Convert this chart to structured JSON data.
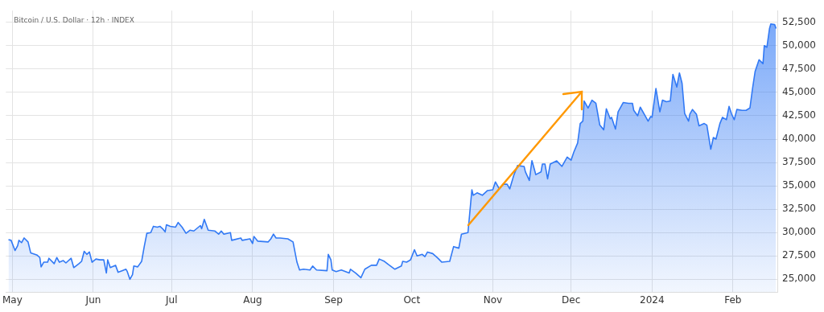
{
  "chart_data": {
    "type": "area",
    "title": "Bitcoin / U.S. Dollar · 12h · INDEX",
    "xlim": [
      "2023-04-28T12:00",
      "2024-02-18"
    ],
    "xticks": [
      {
        "value": "2023-05-01",
        "label": "May"
      },
      {
        "value": "2023-06-01",
        "label": "Jun"
      },
      {
        "value": "2023-07-01",
        "label": "Jul"
      },
      {
        "value": "2023-08-01",
        "label": "Aug"
      },
      {
        "value": "2023-09-01",
        "label": "Sep"
      },
      {
        "value": "2023-10-01",
        "label": "Oct"
      },
      {
        "value": "2023-11-01",
        "label": "Nov"
      },
      {
        "value": "2023-12-01",
        "label": "Dec"
      },
      {
        "value": "2024-01-01",
        "label": "2024"
      },
      {
        "value": "2024-02-01",
        "label": "Feb"
      }
    ],
    "ylim": [
      23600,
      53750
    ],
    "yticks": [
      {
        "value": 25000,
        "label": "25,000"
      },
      {
        "value": 27500,
        "label": "27,500"
      },
      {
        "value": 30000,
        "label": "30,000"
      },
      {
        "value": 32500,
        "label": "32,500"
      },
      {
        "value": 35000,
        "label": "35,000"
      },
      {
        "value": 37500,
        "label": "37,500"
      },
      {
        "value": 40000,
        "label": "40,000"
      },
      {
        "value": 42500,
        "label": "42,500"
      },
      {
        "value": 45000,
        "label": "45,000"
      },
      {
        "value": 47500,
        "label": "47,500"
      },
      {
        "value": 50000,
        "label": "50,000"
      },
      {
        "value": 52500,
        "label": "52,500"
      }
    ],
    "grid": true,
    "legend": false,
    "series": [
      {
        "color": "#3179f5",
        "x": [
          "2023-04-29T12:00",
          "2023-04-30T12:00",
          "2023-05-02",
          "2023-05-03",
          "2023-05-03T12:00",
          "2023-05-04T12:00",
          "2023-05-05T12:00",
          "2023-05-07",
          "2023-05-08",
          "2023-05-10T12:00",
          "2023-05-11T12:00",
          "2023-05-12",
          "2023-05-13",
          "2023-05-14T12:00",
          "2023-05-15",
          "2023-05-17",
          "2023-05-18",
          "2023-05-19",
          "2023-05-20T12:00",
          "2023-05-21T12:00",
          "2023-05-23T12:00",
          "2023-05-24T12:00",
          "2023-05-26T12:00",
          "2023-05-27T12:00",
          "2023-05-28T12:00",
          "2023-05-29T12:00",
          "2023-05-30T12:00",
          "2023-05-31T12:00",
          "2023-06-02",
          "2023-06-03T12:00",
          "2023-06-05",
          "2023-06-06",
          "2023-06-06T12:00",
          "2023-06-07T12:00",
          "2023-06-09T12:00",
          "2023-06-10T12:00",
          "2023-06-12",
          "2023-06-13T12:00",
          "2023-06-14",
          "2023-06-15",
          "2023-06-16",
          "2023-06-16T12:00",
          "2023-06-18",
          "2023-06-19T12:00",
          "2023-06-20T12:00",
          "2023-06-21T12:00",
          "2023-06-23",
          "2023-06-24",
          "2023-06-25T12:00",
          "2023-06-26T12:00",
          "2023-06-27T12:00",
          "2023-06-28T12:00",
          "2023-06-29",
          "2023-06-30T12:00",
          "2023-07-02T12:00",
          "2023-07-03T12:00",
          "2023-07-05",
          "2023-07-06T12:00",
          "2023-07-08",
          "2023-07-09T12:00",
          "2023-07-12",
          "2023-07-12T12:00",
          "2023-07-13T12:00",
          "2023-07-15",
          "2023-07-17T12:00",
          "2023-07-19",
          "2023-07-20",
          "2023-07-21",
          "2023-07-23T12:00",
          "2023-07-24",
          "2023-07-27T12:00",
          "2023-07-28",
          "2023-07-31",
          "2023-08-01",
          "2023-08-01T12:00",
          "2023-08-03",
          "2023-08-07",
          "2023-08-08",
          "2023-08-09",
          "2023-08-10",
          "2023-08-11T12:00",
          "2023-08-14T12:00",
          "2023-08-16T12:00",
          "2023-08-18",
          "2023-08-19",
          "2023-08-20T12:00",
          "2023-08-23",
          "2023-08-24",
          "2023-08-25T12:00",
          "2023-08-29T12:00",
          "2023-08-30",
          "2023-08-31",
          "2023-08-31T12:00",
          "2023-09-02",
          "2023-09-04",
          "2023-09-07",
          "2023-09-07T12:00",
          "2023-09-09T12:00",
          "2023-09-11T12:00",
          "2023-09-13",
          "2023-09-15T12:00",
          "2023-09-17T12:00",
          "2023-09-18T12:00",
          "2023-09-20T12:00",
          "2023-09-22",
          "2023-09-24T12:00",
          "2023-09-27",
          "2023-09-27T12:00",
          "2023-09-29",
          "2023-09-30T12:00",
          "2023-10-02",
          "2023-10-03",
          "2023-10-05",
          "2023-10-06",
          "2023-10-07",
          "2023-10-09",
          "2023-10-11",
          "2023-10-12T12:00",
          "2023-10-15T12:00",
          "2023-10-17",
          "2023-10-19",
          "2023-10-20",
          "2023-10-22T12:00",
          "2023-10-24",
          "2023-10-24T12:00",
          "2023-10-26",
          "2023-10-28",
          "2023-10-30",
          "2023-11-01",
          "2023-11-02",
          "2023-11-03T12:00",
          "2023-11-05",
          "2023-11-06T12:00",
          "2023-11-07T12:00",
          "2023-11-09",
          "2023-11-10T12:00",
          "2023-11-13",
          "2023-11-13T12:00",
          "2023-11-15",
          "2023-11-16",
          "2023-11-17T12:00",
          "2023-11-19T12:00",
          "2023-11-20",
          "2023-11-21",
          "2023-11-22",
          "2023-11-23",
          "2023-11-25T12:00",
          "2023-11-27T12:00",
          "2023-11-29T12:00",
          "2023-12-01",
          "2023-12-02",
          "2023-12-03T12:00",
          "2023-12-04T12:00",
          "2023-12-05T12:00",
          "2023-12-06",
          "2023-12-07T12:00",
          "2023-12-09",
          "2023-12-10T12:00",
          "2023-12-12",
          "2023-12-13T12:00",
          "2023-12-14T12:00",
          "2023-12-16",
          "2023-12-16T12:00",
          "2023-12-18",
          "2023-12-19",
          "2023-12-21",
          "2023-12-23",
          "2023-12-24T12:00",
          "2023-12-25",
          "2023-12-26T12:00",
          "2023-12-27T12:00",
          "2023-12-29",
          "2023-12-30T12:00",
          "2023-12-31T12:00",
          "2024-01-01",
          "2024-01-02T12:00",
          "2024-01-04",
          "2024-01-05",
          "2024-01-06T12:00",
          "2024-01-08",
          "2024-01-09",
          "2024-01-10T12:00",
          "2024-01-11T12:00",
          "2024-01-12T12:00",
          "2024-01-13T12:00",
          "2024-01-15",
          "2024-01-15T12:00",
          "2024-01-16T12:00",
          "2024-01-18",
          "2024-01-19",
          "2024-01-21",
          "2024-01-22",
          "2024-01-23T12:00",
          "2024-01-24T12:00",
          "2024-01-25T12:00",
          "2024-01-27",
          "2024-01-28",
          "2024-01-29T12:00",
          "2024-01-30T12:00",
          "2024-01-31T12:00",
          "2024-02-01T12:00",
          "2024-02-02T12:00",
          "2024-02-04T12:00",
          "2024-02-06",
          "2024-02-07T12:00",
          "2024-02-08T12:00",
          "2024-02-09T12:00",
          "2024-02-11",
          "2024-02-12T12:00",
          "2024-02-13",
          "2024-02-14",
          "2024-02-15",
          "2024-02-15T12:00",
          "2024-02-17",
          "2024-02-17T12:00"
        ],
        "values": [
          29250,
          29170,
          28080,
          28590,
          29170,
          28920,
          29420,
          29000,
          27830,
          27580,
          27330,
          26330,
          26830,
          26830,
          27250,
          26670,
          27330,
          26830,
          27000,
          26750,
          27250,
          26250,
          26670,
          26920,
          28000,
          27670,
          27920,
          26830,
          27170,
          27080,
          27080,
          25670,
          27080,
          26250,
          26500,
          25750,
          25920,
          26080,
          25830,
          25000,
          25500,
          26420,
          26330,
          26920,
          28500,
          29920,
          30000,
          30670,
          30580,
          30670,
          30420,
          30080,
          30830,
          30670,
          30580,
          31080,
          30580,
          29920,
          30250,
          30170,
          30750,
          30420,
          31420,
          30250,
          30170,
          29830,
          30170,
          29830,
          30000,
          29170,
          29420,
          29170,
          29330,
          28830,
          29580,
          29080,
          29000,
          29330,
          29830,
          29420,
          29420,
          29330,
          29000,
          26830,
          26000,
          26080,
          26000,
          26420,
          26000,
          25920,
          27670,
          27080,
          26000,
          25830,
          26000,
          25670,
          26080,
          25670,
          25170,
          26080,
          26500,
          26500,
          27170,
          26920,
          26580,
          26080,
          26420,
          26920,
          26830,
          27080,
          28170,
          27500,
          27670,
          27420,
          27920,
          27750,
          27250,
          26830,
          26920,
          28500,
          28330,
          29830,
          30000,
          34580,
          33990,
          34250,
          33990,
          34500,
          34580,
          35420,
          34670,
          35170,
          35170,
          34670,
          36080,
          37170,
          37080,
          36500,
          35580,
          37700,
          36200,
          36500,
          37330,
          37330,
          35750,
          37330,
          37670,
          37080,
          38080,
          37750,
          38580,
          39580,
          41670,
          41920,
          44080,
          43330,
          44170,
          43830,
          41500,
          41000,
          43250,
          42170,
          42330,
          41080,
          42920,
          43920,
          43830,
          43830,
          43080,
          42500,
          43420,
          42670,
          41920,
          42420,
          42330,
          45420,
          42920,
          44170,
          44000,
          44080,
          46920,
          45580,
          47080,
          45980,
          42750,
          41920,
          42670,
          43170,
          42670,
          41420,
          41670,
          41500,
          38920,
          40170,
          40000,
          41670,
          42330,
          42080,
          43500,
          42670,
          42080,
          43170,
          43080,
          43080,
          43330,
          45420,
          47250,
          48500,
          48080,
          50000,
          49830,
          51830,
          52330,
          52250,
          51830
        ]
      }
    ]
  }
}
